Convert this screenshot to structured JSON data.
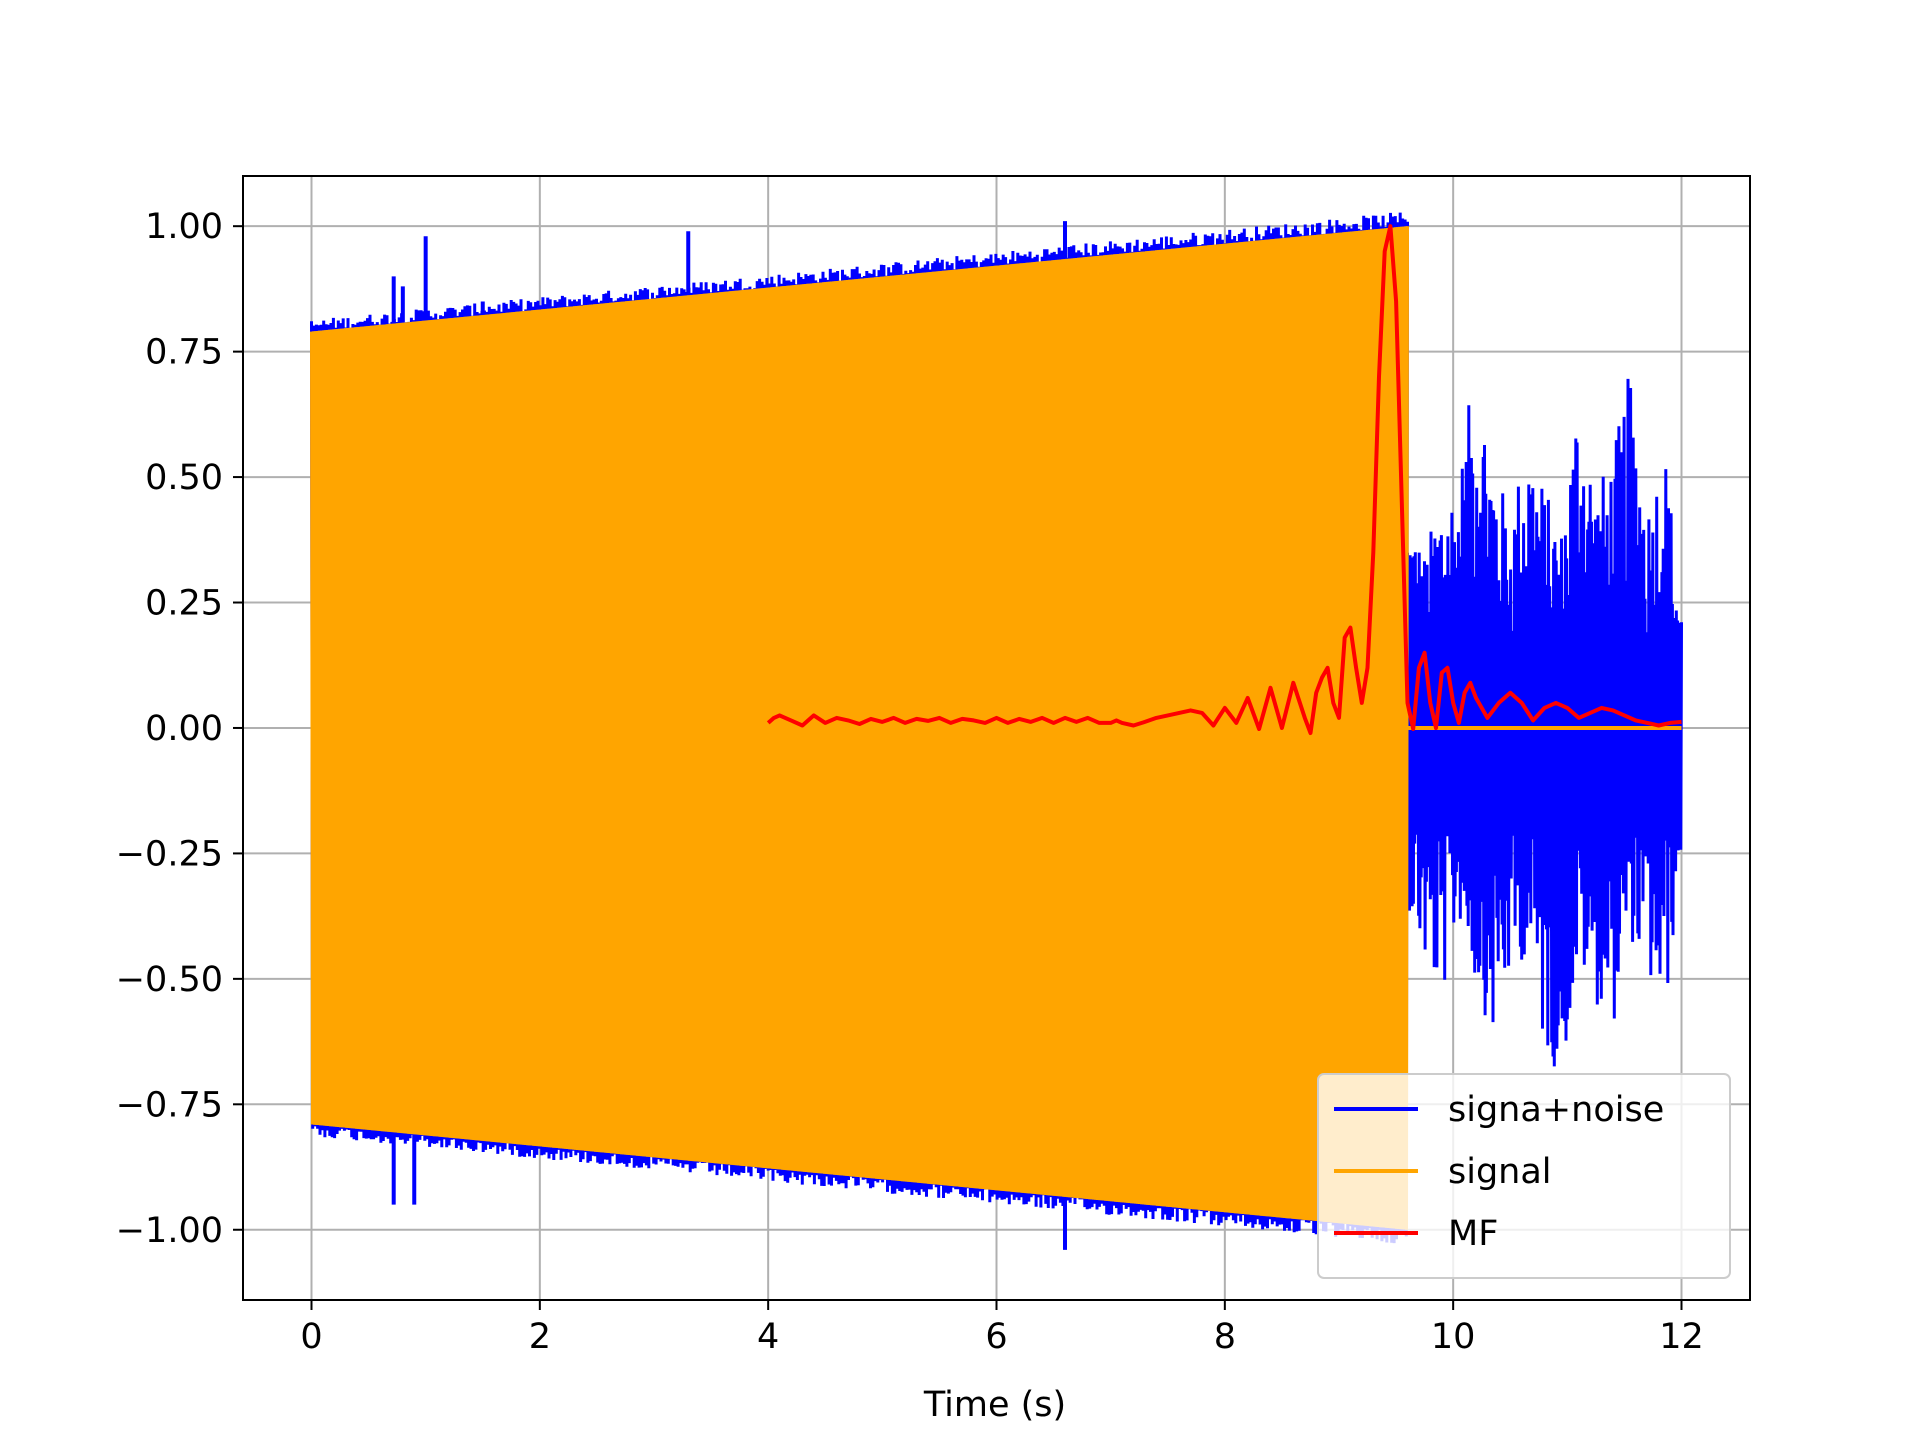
{
  "chart_data": {
    "type": "line",
    "title": "",
    "xlabel": "Time (s)",
    "ylabel": "",
    "xlim": [
      -0.6,
      12.6
    ],
    "ylim": [
      -1.14,
      1.1
    ],
    "x_ticks": [
      0,
      2,
      4,
      6,
      8,
      10,
      12
    ],
    "x_tick_labels": [
      "0",
      "2",
      "4",
      "6",
      "8",
      "10",
      "12"
    ],
    "y_ticks": [
      1.0,
      0.75,
      0.5,
      0.25,
      0.0,
      -0.25,
      -0.5,
      -0.75,
      -1.0
    ],
    "y_tick_labels": [
      "1.00",
      "0.75",
      "0.50",
      "0.25",
      "0.00",
      "−0.25",
      "−0.50",
      "−0.75",
      "−1.00"
    ],
    "grid": true,
    "legend_position": "lower-right",
    "series": [
      {
        "name": "signa+noise",
        "color": "#0000ff",
        "description_points": {
          "signal_segment": {
            "x_start": 0.0,
            "x_end": 9.6
          },
          "noise_only_segment": {
            "x": [
              9.6,
              9.75,
              9.9,
              10.05,
              10.2,
              10.35,
              10.5,
              10.65,
              10.8,
              10.95,
              11.1,
              11.25,
              11.4,
              11.55,
              11.7,
              11.85,
              12.0
            ],
            "max": [
              0.45,
              0.35,
              0.48,
              0.5,
              0.75,
              0.55,
              0.42,
              0.6,
              0.48,
              0.4,
              0.7,
              0.48,
              0.55,
              0.72,
              0.45,
              0.58,
              0.25
            ],
            "min": [
              -0.35,
              -0.48,
              -0.55,
              -0.38,
              -0.52,
              -0.62,
              -0.5,
              -0.45,
              -0.65,
              -0.7,
              -0.48,
              -0.55,
              -0.6,
              -0.42,
              -0.5,
              -0.6,
              -0.25
            ]
          },
          "spikes": [
            {
              "x": 0.72,
              "y": 0.9
            },
            {
              "x": 0.72,
              "y": -0.95
            },
            {
              "x": 0.8,
              "y": 0.88
            },
            {
              "x": 0.9,
              "y": -0.95
            },
            {
              "x": 1.0,
              "y": 0.98
            },
            {
              "x": 1.0,
              "y": -0.8
            },
            {
              "x": 1.5,
              "y": 0.85
            },
            {
              "x": 1.5,
              "y": -0.82
            },
            {
              "x": 3.3,
              "y": 0.99
            },
            {
              "x": 6.0,
              "y": 0.9
            },
            {
              "x": 6.6,
              "y": 1.01
            },
            {
              "x": 6.6,
              "y": -1.04
            },
            {
              "x": 7.1,
              "y": -0.95
            },
            {
              "x": 7.9,
              "y": -0.98
            }
          ]
        }
      },
      {
        "name": "signal",
        "color": "#ffa500",
        "x_range": [
          0.0,
          9.6
        ],
        "amplitude_start": 0.79,
        "amplitude_end": 1.0,
        "after_end_value": 0.0,
        "after_end_range": [
          9.6,
          12.0
        ]
      },
      {
        "name": "MF",
        "color": "#ff0000",
        "x": [
          4.0,
          4.05,
          4.1,
          4.15,
          4.2,
          4.3,
          4.4,
          4.5,
          4.6,
          4.7,
          4.8,
          4.9,
          5.0,
          5.1,
          5.2,
          5.3,
          5.4,
          5.5,
          5.6,
          5.7,
          5.8,
          5.9,
          6.0,
          6.1,
          6.2,
          6.3,
          6.4,
          6.5,
          6.6,
          6.7,
          6.8,
          6.9,
          7.0,
          7.05,
          7.1,
          7.2,
          7.3,
          7.4,
          7.5,
          7.6,
          7.7,
          7.8,
          7.9,
          8.0,
          8.1,
          8.2,
          8.3,
          8.4,
          8.5,
          8.6,
          8.7,
          8.75,
          8.8,
          8.85,
          8.9,
          8.95,
          9.0,
          9.05,
          9.1,
          9.15,
          9.2,
          9.25,
          9.3,
          9.35,
          9.4,
          9.45,
          9.5,
          9.55,
          9.6,
          9.65,
          9.7,
          9.75,
          9.8,
          9.85,
          9.9,
          9.95,
          10.0,
          10.05,
          10.1,
          10.15,
          10.2,
          10.3,
          10.4,
          10.5,
          10.6,
          10.7,
          10.8,
          10.9,
          11.0,
          11.1,
          11.2,
          11.3,
          11.4,
          11.5,
          11.6,
          11.7,
          11.8,
          11.9,
          12.0
        ],
        "y": [
          0.01,
          0.02,
          0.025,
          0.02,
          0.015,
          0.005,
          0.025,
          0.01,
          0.02,
          0.015,
          0.008,
          0.018,
          0.012,
          0.02,
          0.01,
          0.018,
          0.014,
          0.02,
          0.01,
          0.018,
          0.015,
          0.01,
          0.02,
          0.01,
          0.018,
          0.012,
          0.02,
          0.01,
          0.02,
          0.012,
          0.02,
          0.01,
          0.01,
          0.015,
          0.01,
          0.005,
          0.012,
          0.02,
          0.025,
          0.03,
          0.035,
          0.03,
          0.005,
          0.04,
          0.01,
          0.06,
          -0.002,
          0.08,
          0.0,
          0.09,
          0.02,
          -0.01,
          0.07,
          0.1,
          0.12,
          0.05,
          0.02,
          0.18,
          0.2,
          0.12,
          0.05,
          0.12,
          0.35,
          0.7,
          0.95,
          1.0,
          0.85,
          0.45,
          0.05,
          -0.002,
          0.12,
          0.15,
          0.05,
          0.0,
          0.11,
          0.12,
          0.05,
          0.01,
          0.07,
          0.09,
          0.06,
          0.02,
          0.05,
          0.07,
          0.05,
          0.015,
          0.04,
          0.05,
          0.04,
          0.02,
          0.03,
          0.04,
          0.035,
          0.025,
          0.015,
          0.01,
          0.005,
          0.01,
          0.012
        ]
      }
    ]
  }
}
